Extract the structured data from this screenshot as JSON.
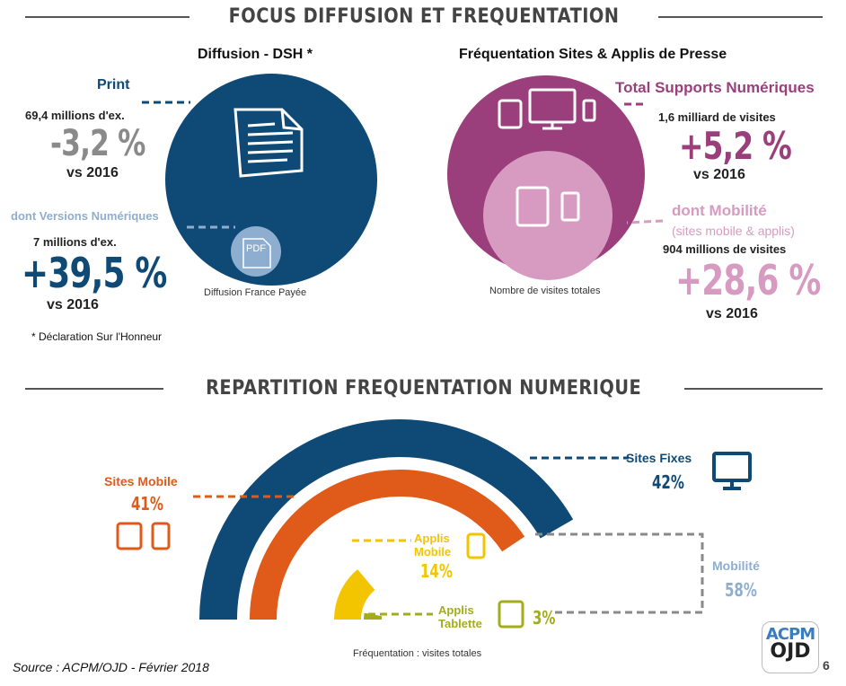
{
  "header1": "FOCUS DIFFUSION ET FREQUENTATION",
  "header2": "REPARTITION FREQUENTATION NUMERIQUE",
  "left": {
    "title": "Diffusion - DSH *",
    "print_label": "Print",
    "print_sub": "69,4 millions d'ex.",
    "print_change": "-3,2 %",
    "print_vs": "vs 2016",
    "num_label": "dont Versions Numériques",
    "num_sub": "7 millions d'ex.",
    "num_change": "+39,5 %",
    "num_vs": "vs 2016",
    "pdf_label": "PDF",
    "circle_caption": "Diffusion France Payée",
    "footnote": "* Déclaration Sur l'Honneur"
  },
  "right": {
    "title": "Fréquentation Sites & Applis de Presse",
    "total_label": "Total Supports Numériques",
    "total_sub": "1,6 milliard de visites",
    "total_change": "+5,2 %",
    "total_vs": "vs 2016",
    "mob_label": "dont Mobilité",
    "mob_sub1": "(sites mobile & applis)",
    "mob_sub2": "904 millions de visites",
    "mob_change": "+28,6 %",
    "mob_vs": "vs 2016",
    "circle_caption": "Nombre de visites totales"
  },
  "bottom": {
    "caption": "Fréquentation : visites totales",
    "sites_fixes_label": "Sites Fixes",
    "sites_fixes_pct": "42%",
    "sites_mobile_label": "Sites Mobile",
    "sites_mobile_pct": "41%",
    "applis_mobile_label1": "Applis",
    "applis_mobile_label2": "Mobile",
    "applis_mobile_pct": "14%",
    "applis_tablette_label1": "Applis",
    "applis_tablette_label2": "Tablette",
    "applis_tablette_pct": "3%",
    "mobilite_label": "Mobilité",
    "mobilite_pct": "58%"
  },
  "footer": {
    "source": "Source : ACPM/OJD - Février 2018",
    "logo_top": "ACPM",
    "logo_bottom": "OJD",
    "page_number": "6"
  },
  "colors": {
    "navy": "#0e4a75",
    "purple": "#9b3f7c",
    "pink": "#d79bc2",
    "orange": "#e05a1a",
    "yellow": "#f2c500",
    "olive": "#a3ad1b",
    "grey": "#8a8a8a",
    "lightblue": "#8eaed0"
  },
  "chart_data": {
    "type": "pie",
    "title": "REPARTITION FREQUENTATION NUMERIQUE",
    "categories": [
      "Sites Fixes",
      "Sites Mobile",
      "Applis Mobile",
      "Applis Tablette"
    ],
    "values": [
      42,
      41,
      14,
      3
    ],
    "group": {
      "name": "Mobilité",
      "members": [
        "Sites Mobile",
        "Applis Mobile",
        "Applis Tablette"
      ],
      "value": 58
    },
    "xlabel": "Fréquentation : visites totales"
  }
}
